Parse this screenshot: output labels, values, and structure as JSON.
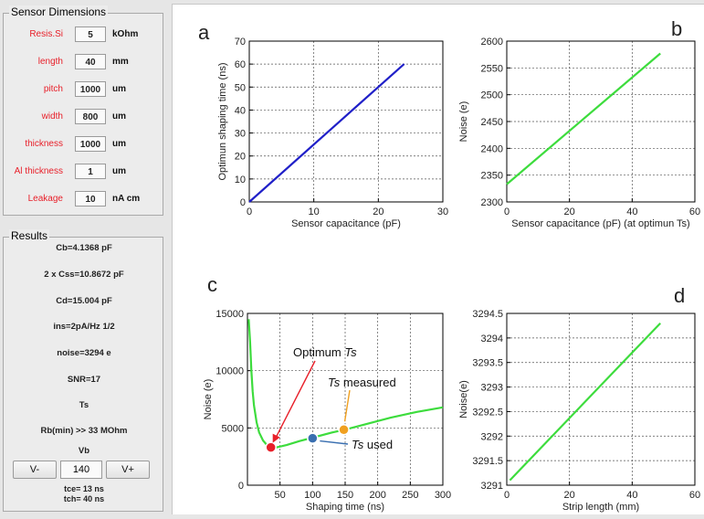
{
  "sensor": {
    "title": "Sensor Dimensions",
    "rows": [
      {
        "label": "Resis.Si",
        "value": "5",
        "unit": "kOhm"
      },
      {
        "label": "length",
        "value": "40",
        "unit": "mm"
      },
      {
        "label": "pitch",
        "value": "1000",
        "unit": "um"
      },
      {
        "label": "width",
        "value": "800",
        "unit": "um"
      },
      {
        "label": "thickness",
        "value": "1000",
        "unit": "um"
      },
      {
        "label": "Al thickness",
        "value": "1",
        "unit": "um"
      },
      {
        "label": "Leakage",
        "value": "10",
        "unit": "nA cm"
      }
    ]
  },
  "results": {
    "title": "Results",
    "lines": [
      "Cb=4.1368 pF",
      "2 x Css=10.8672 pF",
      "Cd=15.004 pF",
      "ins=2pA/Hz 1/2",
      "noise=3294 e",
      "SNR=17",
      "Ts",
      "Rb(min) >> 33 MOhm"
    ],
    "vb_label": "Vb",
    "vb_minus": "V-",
    "vb_value": "140",
    "vb_plus": "V+",
    "tce": "tce= 13 ns",
    "tch": "tch= 40 ns"
  },
  "colors": {
    "blue_line": "#2020c8",
    "green_line": "#3ddc3d",
    "red_marker": "#e8202a",
    "blue_marker": "#3a6fb0",
    "orange_marker": "#f0a020"
  },
  "chart_data": [
    {
      "panel": "a",
      "type": "line",
      "xlabel": "Sensor capacitance (pF)",
      "ylabel": "Optimun shaping time (ns)",
      "xlim": [
        0,
        30
      ],
      "ylim": [
        0,
        70
      ],
      "xticks": [
        "0",
        "10",
        "20",
        "30"
      ],
      "yticks": [
        "0",
        "10",
        "20",
        "30",
        "40",
        "50",
        "60",
        "70"
      ],
      "series": [
        {
          "x": [
            0,
            24
          ],
          "y": [
            0,
            60
          ]
        }
      ]
    },
    {
      "panel": "b",
      "type": "line",
      "xlabel": "Sensor capacitance (pF)  (at optimun Ts)",
      "ylabel": "Noise (e)",
      "xlim": [
        0,
        60
      ],
      "ylim": [
        2300,
        2600
      ],
      "xticks": [
        "0",
        "20",
        "40",
        "60"
      ],
      "yticks": [
        "2300",
        "2350",
        "2400",
        "2450",
        "2500",
        "2550",
        "2600"
      ],
      "series": [
        {
          "x": [
            0,
            49
          ],
          "y": [
            2333,
            2577
          ]
        }
      ]
    },
    {
      "panel": "c",
      "type": "line",
      "xlabel": "Shaping time (ns)",
      "ylabel": "Noise (e)",
      "xlim": [
        0,
        300
      ],
      "ylim": [
        0,
        15000
      ],
      "xticks": [
        "50",
        "100",
        "150",
        "200",
        "250",
        "300"
      ],
      "yticks": [
        "0",
        "5000",
        "10000",
        "15000"
      ],
      "series": [
        {
          "x": [
            2,
            4,
            6,
            8,
            10,
            14,
            18,
            24,
            30,
            36,
            45,
            60,
            80,
            100,
            130,
            150,
            180,
            220,
            260,
            300
          ],
          "y": [
            14500,
            12500,
            10000,
            8200,
            7000,
            5500,
            4600,
            3900,
            3500,
            3300,
            3300,
            3500,
            3850,
            4150,
            4600,
            4850,
            5300,
            5900,
            6400,
            6800
          ]
        }
      ],
      "annotations": [
        {
          "text": "Optimum",
          "italic": "Ts",
          "x": 36,
          "y": 3300
        },
        {
          "text": "measured",
          "italic": "Ts",
          "x": 148,
          "y": 4850
        },
        {
          "text": "used",
          "italic": "Ts",
          "x": 100,
          "y": 4100
        }
      ]
    },
    {
      "panel": "d",
      "type": "line",
      "xlabel": "Strip length (mm)",
      "ylabel": "Noise(e)",
      "xlim": [
        0,
        60
      ],
      "ylim": [
        3291,
        3294.5
      ],
      "xticks": [
        "0",
        "20",
        "40",
        "60"
      ],
      "yticks": [
        "3291",
        "3291.5",
        "3292",
        "3292.5",
        "3293",
        "3293.5",
        "3294",
        "3294.5"
      ],
      "series": [
        {
          "x": [
            1,
            49
          ],
          "y": [
            3291.1,
            3294.3
          ]
        }
      ]
    }
  ]
}
